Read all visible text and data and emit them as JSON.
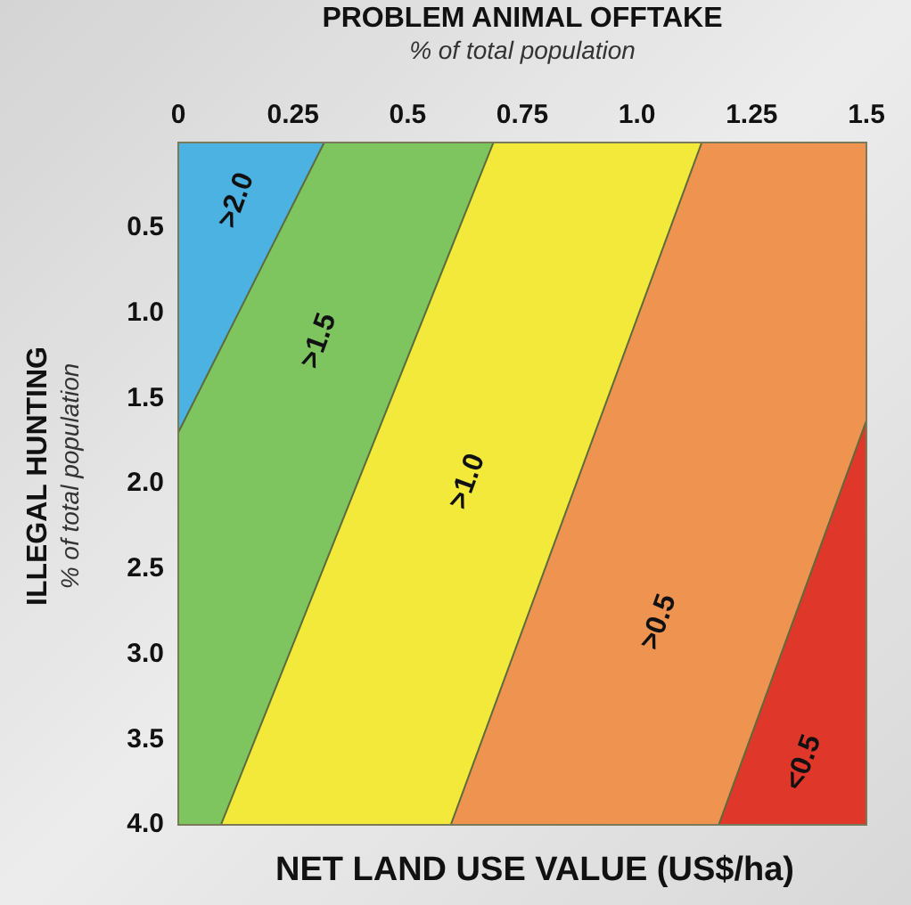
{
  "chart_data": {
    "type": "line",
    "title": "NET LAND USE VALUE (US$/ha)",
    "xlabel": "PROBLEM ANIMAL OFFTAKE\n% of total population",
    "ylabel": "ILLEGAL HUNTING\n% of total population",
    "xlim": [
      0,
      1.5
    ],
    "ylim": [
      4.0,
      0
    ],
    "xticks": [
      0,
      0.25,
      0.5,
      0.75,
      {
        "value": 1,
        "label": "1.0"
      },
      1.25,
      1.5
    ],
    "yticks": [
      0.5,
      {
        "value": 1,
        "label": "1.0"
      },
      1.5,
      {
        "value": 2,
        "label": "2.0"
      },
      2.5,
      {
        "value": 3,
        "label": "3.0"
      },
      3.5,
      {
        "value": 4,
        "label": "4.0"
      }
    ],
    "colors": [
      "#4bb2e2",
      "#7ec45f",
      "#f2e93a",
      "#ef9450",
      "#e0372b"
    ],
    "series": [
      {
        "color": "#5d6a3c",
        "x": [
          0.318,
          0
        ],
        "values": [
          0,
          1.7
        ]
      },
      {
        "color": "#5d6a3c",
        "x": [
          0.687,
          0.093
        ],
        "values": [
          0,
          4.0
        ]
      },
      {
        "color": "#5d6a3c",
        "x": [
          1.141,
          0.594
        ],
        "values": [
          0,
          4.0
        ]
      },
      {
        "color": "#5d6a3c",
        "x": [
          1.5,
          1.178
        ],
        "values": [
          1.63,
          4.0
        ]
      }
    ],
    "marker": "none",
    "annotations": [
      ">2.0",
      ">1.5",
      ">1.0",
      ">0.5",
      "<0.5"
    ]
  }
}
